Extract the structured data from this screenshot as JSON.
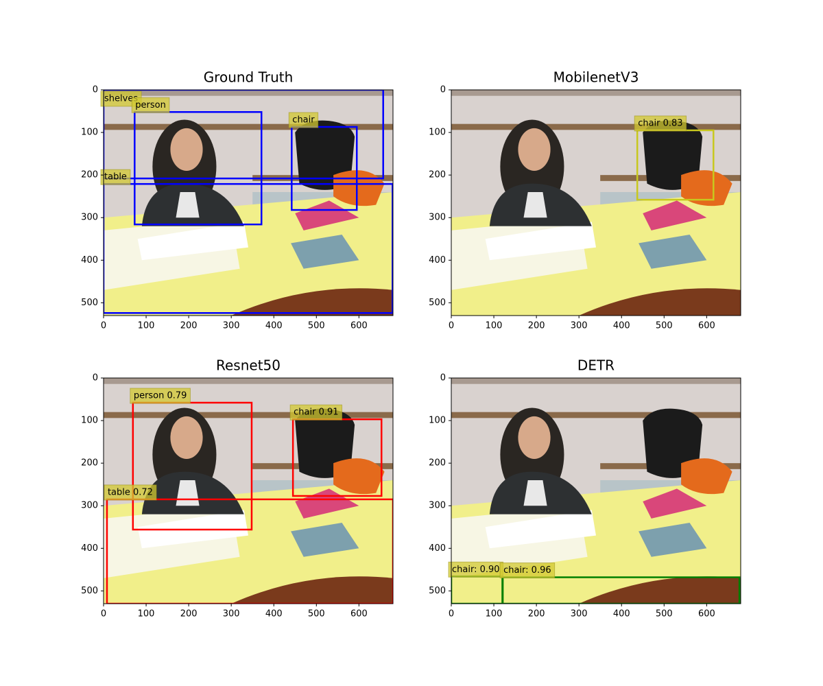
{
  "chart_data": [
    {
      "type": "detection",
      "title": "Ground Truth",
      "color": "#0000ff",
      "xlim": [
        0,
        680
      ],
      "ylim": [
        530,
        0
      ],
      "xticks": [
        0,
        100,
        200,
        300,
        400,
        500,
        600
      ],
      "yticks": [
        0,
        100,
        200,
        300,
        400,
        500
      ],
      "boxes": [
        {
          "label": "shelves",
          "x": [
            0,
            657
          ],
          "y": [
            0,
            208
          ]
        },
        {
          "label": "person",
          "x": [
            73,
            371
          ],
          "y": [
            52,
            316
          ]
        },
        {
          "label": "chair",
          "x": [
            442,
            595
          ],
          "y": [
            87,
            282
          ]
        },
        {
          "label": "table",
          "x": [
            0,
            679
          ],
          "y": [
            221,
            524
          ]
        }
      ]
    },
    {
      "type": "detection",
      "title": "MobilenetV3",
      "color": "#c8c81e",
      "xlim": [
        0,
        680
      ],
      "ylim": [
        530,
        0
      ],
      "xticks": [
        0,
        100,
        200,
        300,
        400,
        500,
        600
      ],
      "yticks": [
        0,
        100,
        200,
        300,
        400,
        500
      ],
      "boxes": [
        {
          "label": "chair 0.83",
          "x": [
            437,
            616
          ],
          "y": [
            95,
            258
          ]
        }
      ]
    },
    {
      "type": "detection",
      "title": "Resnet50",
      "color": "#ff0000",
      "xlim": [
        0,
        680
      ],
      "ylim": [
        530,
        0
      ],
      "xticks": [
        0,
        100,
        200,
        300,
        400,
        500,
        600
      ],
      "yticks": [
        0,
        100,
        200,
        300,
        400,
        500
      ],
      "boxes": [
        {
          "label": "person 0.79",
          "x": [
            69,
            348
          ],
          "y": [
            58,
            356
          ]
        },
        {
          "label": "chair 0.91",
          "x": [
            445,
            653
          ],
          "y": [
            97,
            277
          ]
        },
        {
          "label": "table 0.72",
          "x": [
            8,
            680
          ],
          "y": [
            285,
            530
          ]
        }
      ]
    },
    {
      "type": "detection",
      "title": "DETR",
      "color": "#008000",
      "xlim": [
        0,
        680
      ],
      "ylim": [
        530,
        0
      ],
      "xticks": [
        0,
        100,
        200,
        300,
        400,
        500,
        600
      ],
      "yticks": [
        0,
        100,
        200,
        300,
        400,
        500
      ],
      "boxes": [
        {
          "label": "chair: 0.90",
          "x": [
            0,
            120
          ],
          "y": [
            466,
            530
          ]
        },
        {
          "label": "chair: 0.96",
          "x": [
            121,
            677
          ],
          "y": [
            468,
            530
          ]
        }
      ]
    }
  ]
}
